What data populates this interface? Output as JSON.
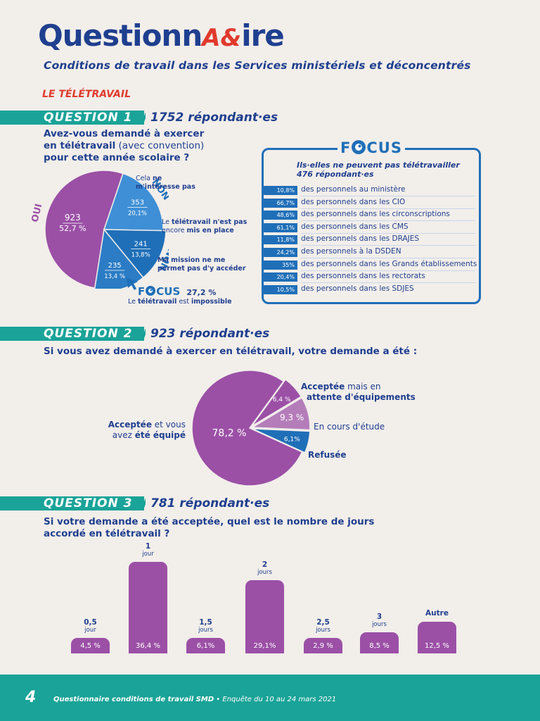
{
  "header": {
    "logo_q": "Questionn",
    "logo_ae": "A&",
    "logo_ire": "ire",
    "subtitle": "Conditions de travail dans les Services ministériels et déconcentrés",
    "section": "LE TÉLÉTRAVAIL"
  },
  "q1": {
    "label": "QUESTION 1",
    "respondents": "1752 répondant·es",
    "question_bold1": "Avez-vous demandé à exercer",
    "question_bold2": "en télétravail",
    "question_normal": " (avec convention)",
    "question_bold3": "pour cette année scolaire ?",
    "slices": [
      {
        "value": "923",
        "pct": "52,7 %",
        "share": 52.7,
        "tag": "OUI"
      },
      {
        "value": "353",
        "pct": "20,1%",
        "share": 20.1,
        "tag": "NON"
      },
      {
        "value": "241",
        "pct": "13,8%",
        "share": 13.8,
        "tag": "NON"
      },
      {
        "value": "235",
        "pct": "13,4 %",
        "share": 13.4,
        "tag": "NON"
      }
    ],
    "note1_a": "Cela ",
    "note1_b": "ne",
    "note1_c": "m'intéresse pas",
    "note2_a": "Le ",
    "note2_b": "télétravail n'est pas",
    "note2_c": "encore ",
    "note2_d": "mis en place",
    "note3_a": "Ma mission ne me",
    "note3_b": "permet pas d'y accéder",
    "focus_small_pct": "27,2 %",
    "focus_small_a": "Le ",
    "focus_small_b": "télétravail",
    "focus_small_c": " est ",
    "focus_small_d": "impossible"
  },
  "focus": {
    "word_f": "F",
    "word_cus": "CUS",
    "lead1": "Ils·elles ne peuvent pas télétravailler",
    "lead2": "476 répondant·es",
    "rows": [
      {
        "pct": "10,8%",
        "text": "des personnels au ministère"
      },
      {
        "pct": "66,7%",
        "text": "des personnels dans les CIO"
      },
      {
        "pct": "48,6%",
        "text": "des personnels dans les circonscriptions"
      },
      {
        "pct": "61,1%",
        "text": "des personnels dans les CMS"
      },
      {
        "pct": "11,8%",
        "text": "des personnels dans les DRAJES"
      },
      {
        "pct": "24,2%",
        "text": "des personnels à la DSDEN"
      },
      {
        "pct": "35%",
        "text": "des personnels dans les Grands établissements"
      },
      {
        "pct": "20,4%",
        "text": "des personnels dans les rectorats"
      },
      {
        "pct": "10,5%",
        "text": "des personnels dans les SDJES"
      }
    ]
  },
  "q2": {
    "label": "QUESTION 2",
    "respondents": "923 répondant·es",
    "question": "Si vous avez demandé à exercer en télétravail, votre demande a été :",
    "slices": [
      {
        "pct": "78,2 %",
        "share": 78.2
      },
      {
        "pct": "6,4 %",
        "share": 6.4
      },
      {
        "pct": "9,3 %",
        "share": 9.3
      },
      {
        "pct": "6,1%",
        "share": 6.1
      }
    ],
    "lbl_accepted_a": "Acceptée",
    "lbl_accepted_b": " et vous",
    "lbl_accepted_c": "avez ",
    "lbl_accepted_d": "été équipé",
    "lbl_wait_a": "Acceptée",
    "lbl_wait_b": " mais en",
    "lbl_wait_c": "attente d'équipements",
    "lbl_study": "En cours d'étude",
    "lbl_refused": "Refusée"
  },
  "q3": {
    "label": "QUESTION 3",
    "respondents": "781 répondant·es",
    "question1": "Si votre demande a été acceptée, quel est le nombre de jours",
    "question2": "accordé en télétravail ?",
    "bars": [
      {
        "cat": "0,5",
        "unit": "jour",
        "pct": "4,5 %",
        "value": 4.5
      },
      {
        "cat": "1",
        "unit": "jour",
        "pct": "36,4 %",
        "value": 36.4
      },
      {
        "cat": "1,5",
        "unit": "jours",
        "pct": "6,1%",
        "value": 6.1
      },
      {
        "cat": "2",
        "unit": "jours",
        "pct": "29,1%",
        "value": 29.1
      },
      {
        "cat": "2,5",
        "unit": "jours",
        "pct": "2,9 %",
        "value": 2.9
      },
      {
        "cat": "3",
        "unit": "jours",
        "pct": "8,5 %",
        "value": 8.5
      },
      {
        "cat": "Autre",
        "unit": "",
        "pct": "12,5 %",
        "value": 12.5
      }
    ]
  },
  "chart_data": [
    {
      "type": "pie",
      "title": "Avez-vous demandé à exercer en télétravail (avec convention) pour cette année scolaire ?",
      "slices": [
        {
          "label": "OUI",
          "value": 923,
          "pct": 52.7
        },
        {
          "label": "NON — Cela ne m'intéresse pas",
          "value": 353,
          "pct": 20.1
        },
        {
          "label": "NON — Le télétravail n'est pas encore mis en place",
          "value": 241,
          "pct": 13.8
        },
        {
          "label": "NON — Ma mission ne me permet pas d'y accéder",
          "value": 235,
          "pct": 13.4
        }
      ]
    },
    {
      "type": "pie",
      "title": "Si vous avez demandé à exercer en télétravail, votre demande a été :",
      "slices": [
        {
          "label": "Acceptée et vous avez été équipé",
          "pct": 78.2
        },
        {
          "label": "Acceptée mais en attente d'équipements",
          "pct": 6.4
        },
        {
          "label": "En cours d'étude",
          "pct": 9.3
        },
        {
          "label": "Refusée",
          "pct": 6.1
        }
      ]
    },
    {
      "type": "bar",
      "title": "Si votre demande a été acceptée, quel est le nombre de jours accordé en télétravail ?",
      "categories": [
        "0,5 jour",
        "1 jour",
        "1,5 jours",
        "2 jours",
        "2,5 jours",
        "3 jours",
        "Autre"
      ],
      "values": [
        4.5,
        36.4,
        6.1,
        29.1,
        2.9,
        8.5,
        12.5
      ]
    }
  ],
  "footer": {
    "page": "4",
    "text_b": "Questionnaire conditions de travail SMD",
    "text_n": " • Enquête du 10 au 24 mars 2021"
  },
  "colors": {
    "purple": "#9b50a6",
    "blue": "#1f6fb8",
    "navy": "#1f3f8f",
    "teal": "#1aa398",
    "red": "#e03a2d"
  }
}
